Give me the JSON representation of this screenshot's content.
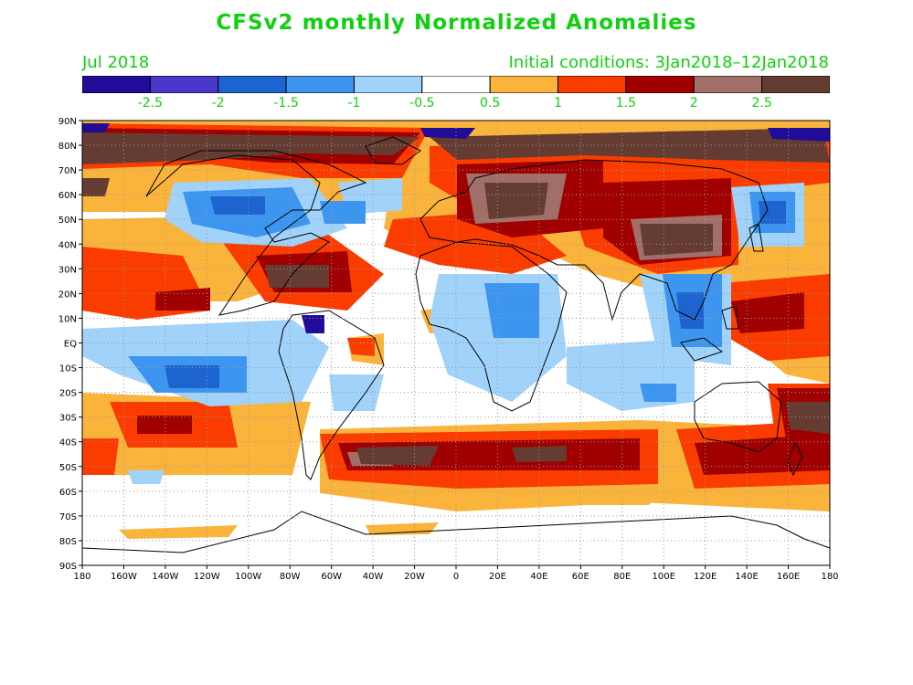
{
  "title": "CFSv2 monthly Normalized Anomalies",
  "valid_month": "Jul 2018",
  "initial_conditions": "Initial conditions: 3Jan2018–12Jan2018",
  "colors": {
    "label_green": "#10d010"
  },
  "colorbar": {
    "colors": [
      "#200c98",
      "#4838cc",
      "#1e64d0",
      "#3c96f0",
      "#a0d2fa",
      "#ffffff",
      "#fab43c",
      "#fa3c00",
      "#a00000",
      "#a07068",
      "#643c32"
    ],
    "tick_labels": [
      "-2.5",
      "-2",
      "-1.5",
      "-1",
      "-0.5",
      "0.5",
      "1",
      "1.5",
      "2",
      "2.5"
    ]
  },
  "map": {
    "projection": "cylindrical equidistant",
    "lat_labels": [
      "90N",
      "80N",
      "70N",
      "60N",
      "50N",
      "40N",
      "30N",
      "20N",
      "10N",
      "EQ",
      "10S",
      "20S",
      "30S",
      "40S",
      "50S",
      "60S",
      "70S",
      "80S",
      "90S"
    ],
    "lon_labels": [
      "180",
      "160W",
      "140W",
      "120W",
      "100W",
      "80W",
      "60W",
      "40W",
      "20W",
      "0",
      "20E",
      "40E",
      "60E",
      "80E",
      "100E",
      "120E",
      "140E",
      "160E",
      "180"
    ],
    "gridlines": "dotted"
  }
}
